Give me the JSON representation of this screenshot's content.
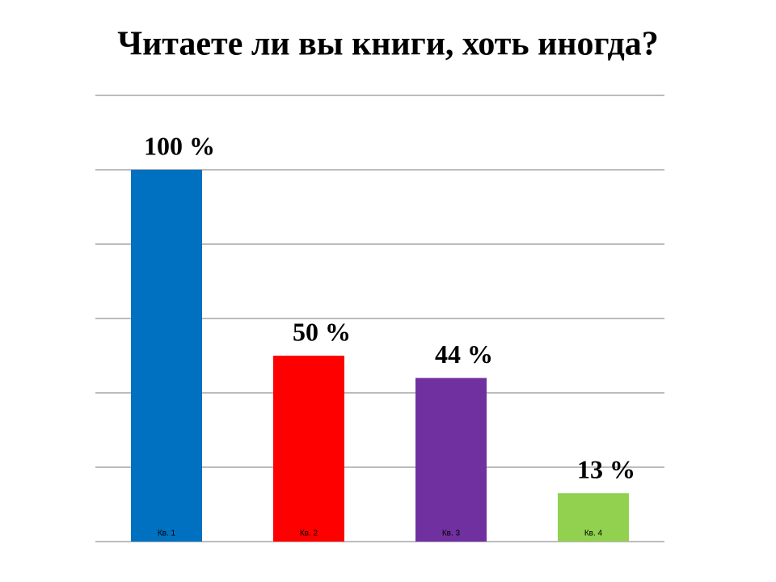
{
  "chart_data": {
    "type": "bar",
    "title": "Читаете ли вы книги, хоть иногда?",
    "categories": [
      "Кв. 1",
      "Кв. 2",
      "Кв. 3",
      "Кв. 4"
    ],
    "values": [
      100,
      50,
      44,
      13
    ],
    "value_labels": [
      "100 %",
      "50 %",
      "44 %",
      "13 %"
    ],
    "colors": [
      "#0070c0",
      "#ff0000",
      "#7030a0",
      "#92d050"
    ],
    "ylim": [
      0,
      120
    ],
    "yticks": [
      0,
      20,
      40,
      60,
      80,
      100,
      120
    ],
    "grid": true
  }
}
